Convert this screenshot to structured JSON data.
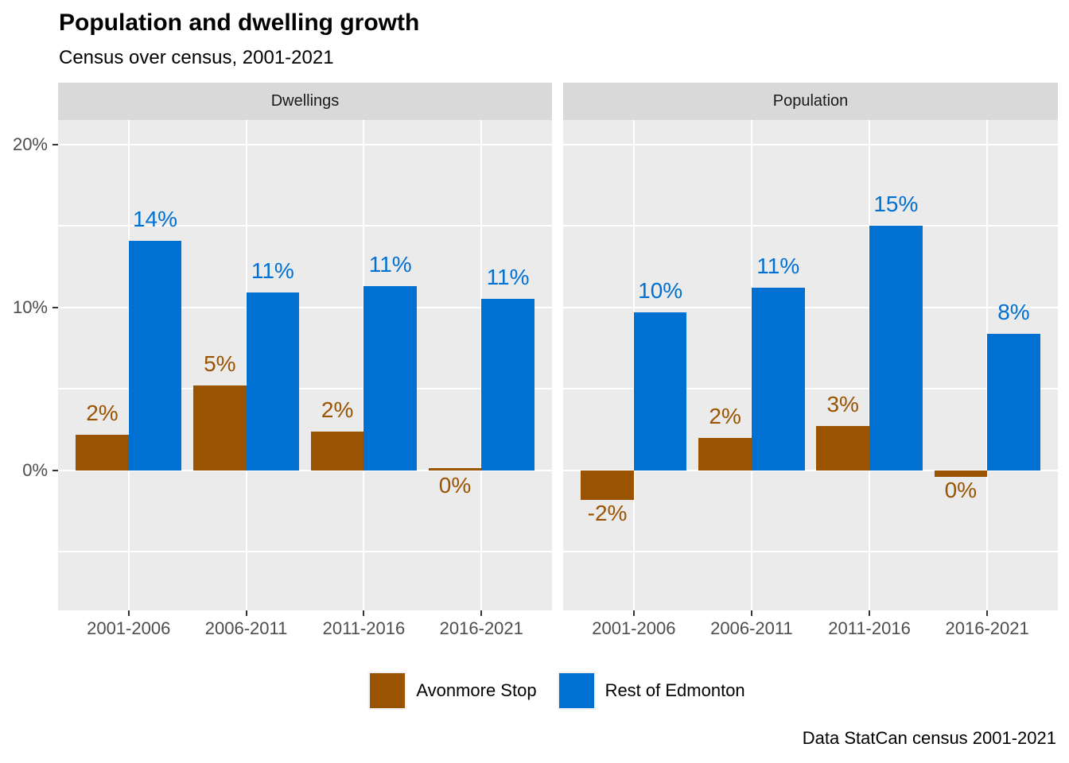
{
  "title": "Population and dwelling growth",
  "subtitle": "Census over census, 2001-2021",
  "caption": "Data StatCan census 2001-2021",
  "legend": {
    "items": [
      {
        "label": "Avonmore Stop",
        "color": "#9A5300"
      },
      {
        "label": "Rest of Edmonton",
        "color": "#0070D2"
      }
    ]
  },
  "chart_data": {
    "type": "bar",
    "layout_hints": {
      "faceted": true,
      "grid": "on",
      "legend_position": "bottom",
      "panel_background": "#EBEBEB",
      "strip_background": "#D9D9D9",
      "gridline_color": "#ffffff"
    },
    "facets": [
      "Dwellings",
      "Population"
    ],
    "categories": [
      "2001-2006",
      "2006-2011",
      "2011-2016",
      "2016-2021"
    ],
    "series": [
      {
        "name": "Avonmore Stop",
        "color": "#9A5300",
        "values_by_facet": [
          [
            2.2,
            5.2,
            2.4,
            0.15
          ],
          [
            -1.8,
            2.0,
            2.7,
            -0.4
          ]
        ],
        "labels_by_facet": [
          [
            "2%",
            "5%",
            "2%",
            "0%"
          ],
          [
            "-2%",
            "2%",
            "3%",
            "0%"
          ]
        ]
      },
      {
        "name": "Rest of Edmonton",
        "color": "#0070D2",
        "values_by_facet": [
          [
            14.1,
            10.9,
            11.3,
            10.5
          ],
          [
            9.7,
            11.2,
            15.0,
            8.4
          ]
        ],
        "labels_by_facet": [
          [
            "14%",
            "11%",
            "11%",
            "11%"
          ],
          [
            "10%",
            "11%",
            "15%",
            "8%"
          ]
        ]
      }
    ],
    "xlabel": "",
    "ylabel": "",
    "yaxis": {
      "ticks": [
        {
          "value": 0,
          "label": "0%"
        },
        {
          "value": 10,
          "label": "10%"
        },
        {
          "value": 20,
          "label": "20%"
        }
      ],
      "minor_ticks": [
        -5,
        5,
        15
      ],
      "ylim": [
        -8.6,
        21.5
      ]
    }
  }
}
